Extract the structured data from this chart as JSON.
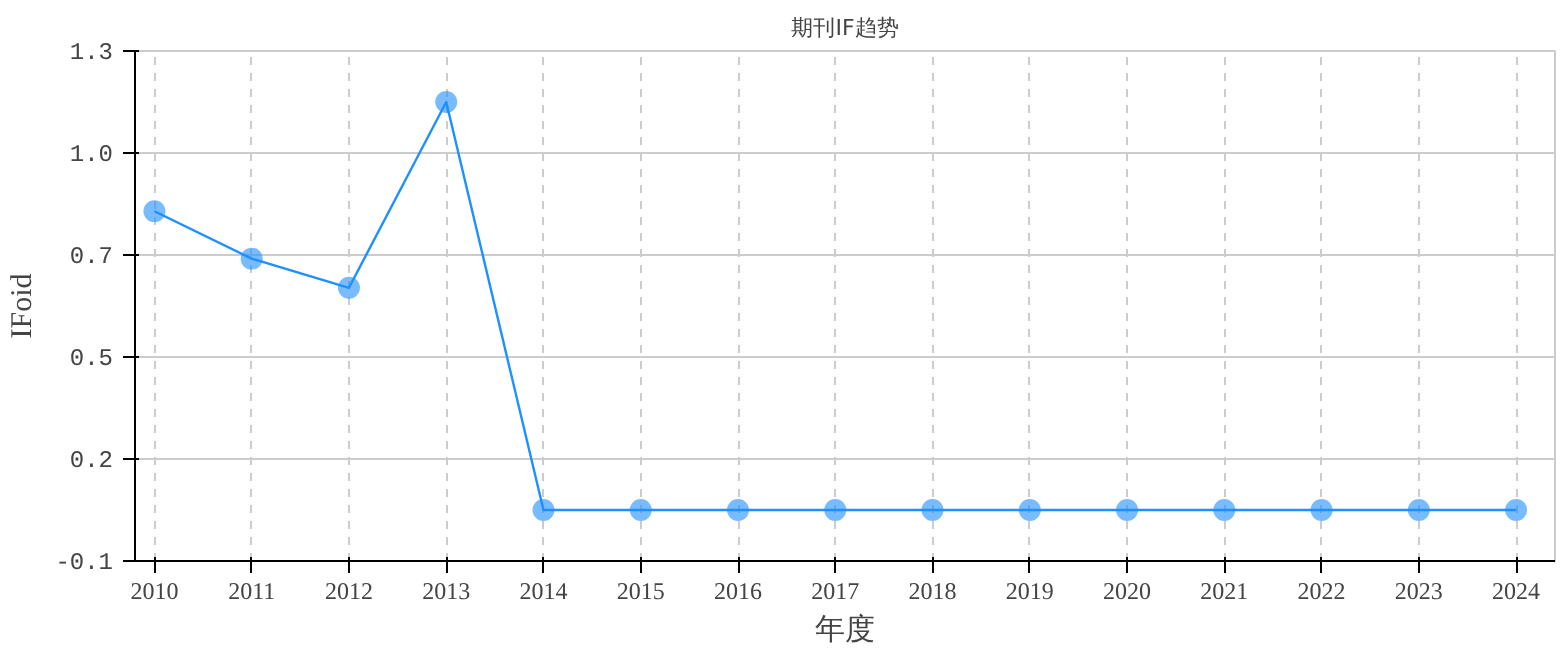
{
  "chart_data": {
    "type": "line",
    "title": "期刊IF趋势",
    "xlabel": "年度",
    "ylabel": "IFoid",
    "categories": [
      "2010",
      "2011",
      "2012",
      "2013",
      "2014",
      "2015",
      "2016",
      "2017",
      "2018",
      "2019",
      "2020",
      "2021",
      "2022",
      "2023",
      "2024"
    ],
    "series": [
      {
        "color": "#1e90ff",
        "values": [
          0.86,
          0.73,
          0.65,
          1.16,
          0.04,
          0.04,
          0.04,
          0.04,
          0.04,
          0.04,
          0.04,
          0.04,
          0.04,
          0.04,
          0.04
        ]
      }
    ],
    "ylim": [
      -0.1,
      1.3
    ],
    "yticks": [
      -0.1,
      {
        "value": 0.18,
        "label": "0.2"
      },
      {
        "value": 0.46,
        "label": "0.5"
      },
      {
        "value": 0.74,
        "label": "0.7"
      },
      {
        "value": 1.02,
        "label": "1.0"
      },
      1.3
    ],
    "grid": true,
    "marker": "circle",
    "line_style": "solid"
  }
}
